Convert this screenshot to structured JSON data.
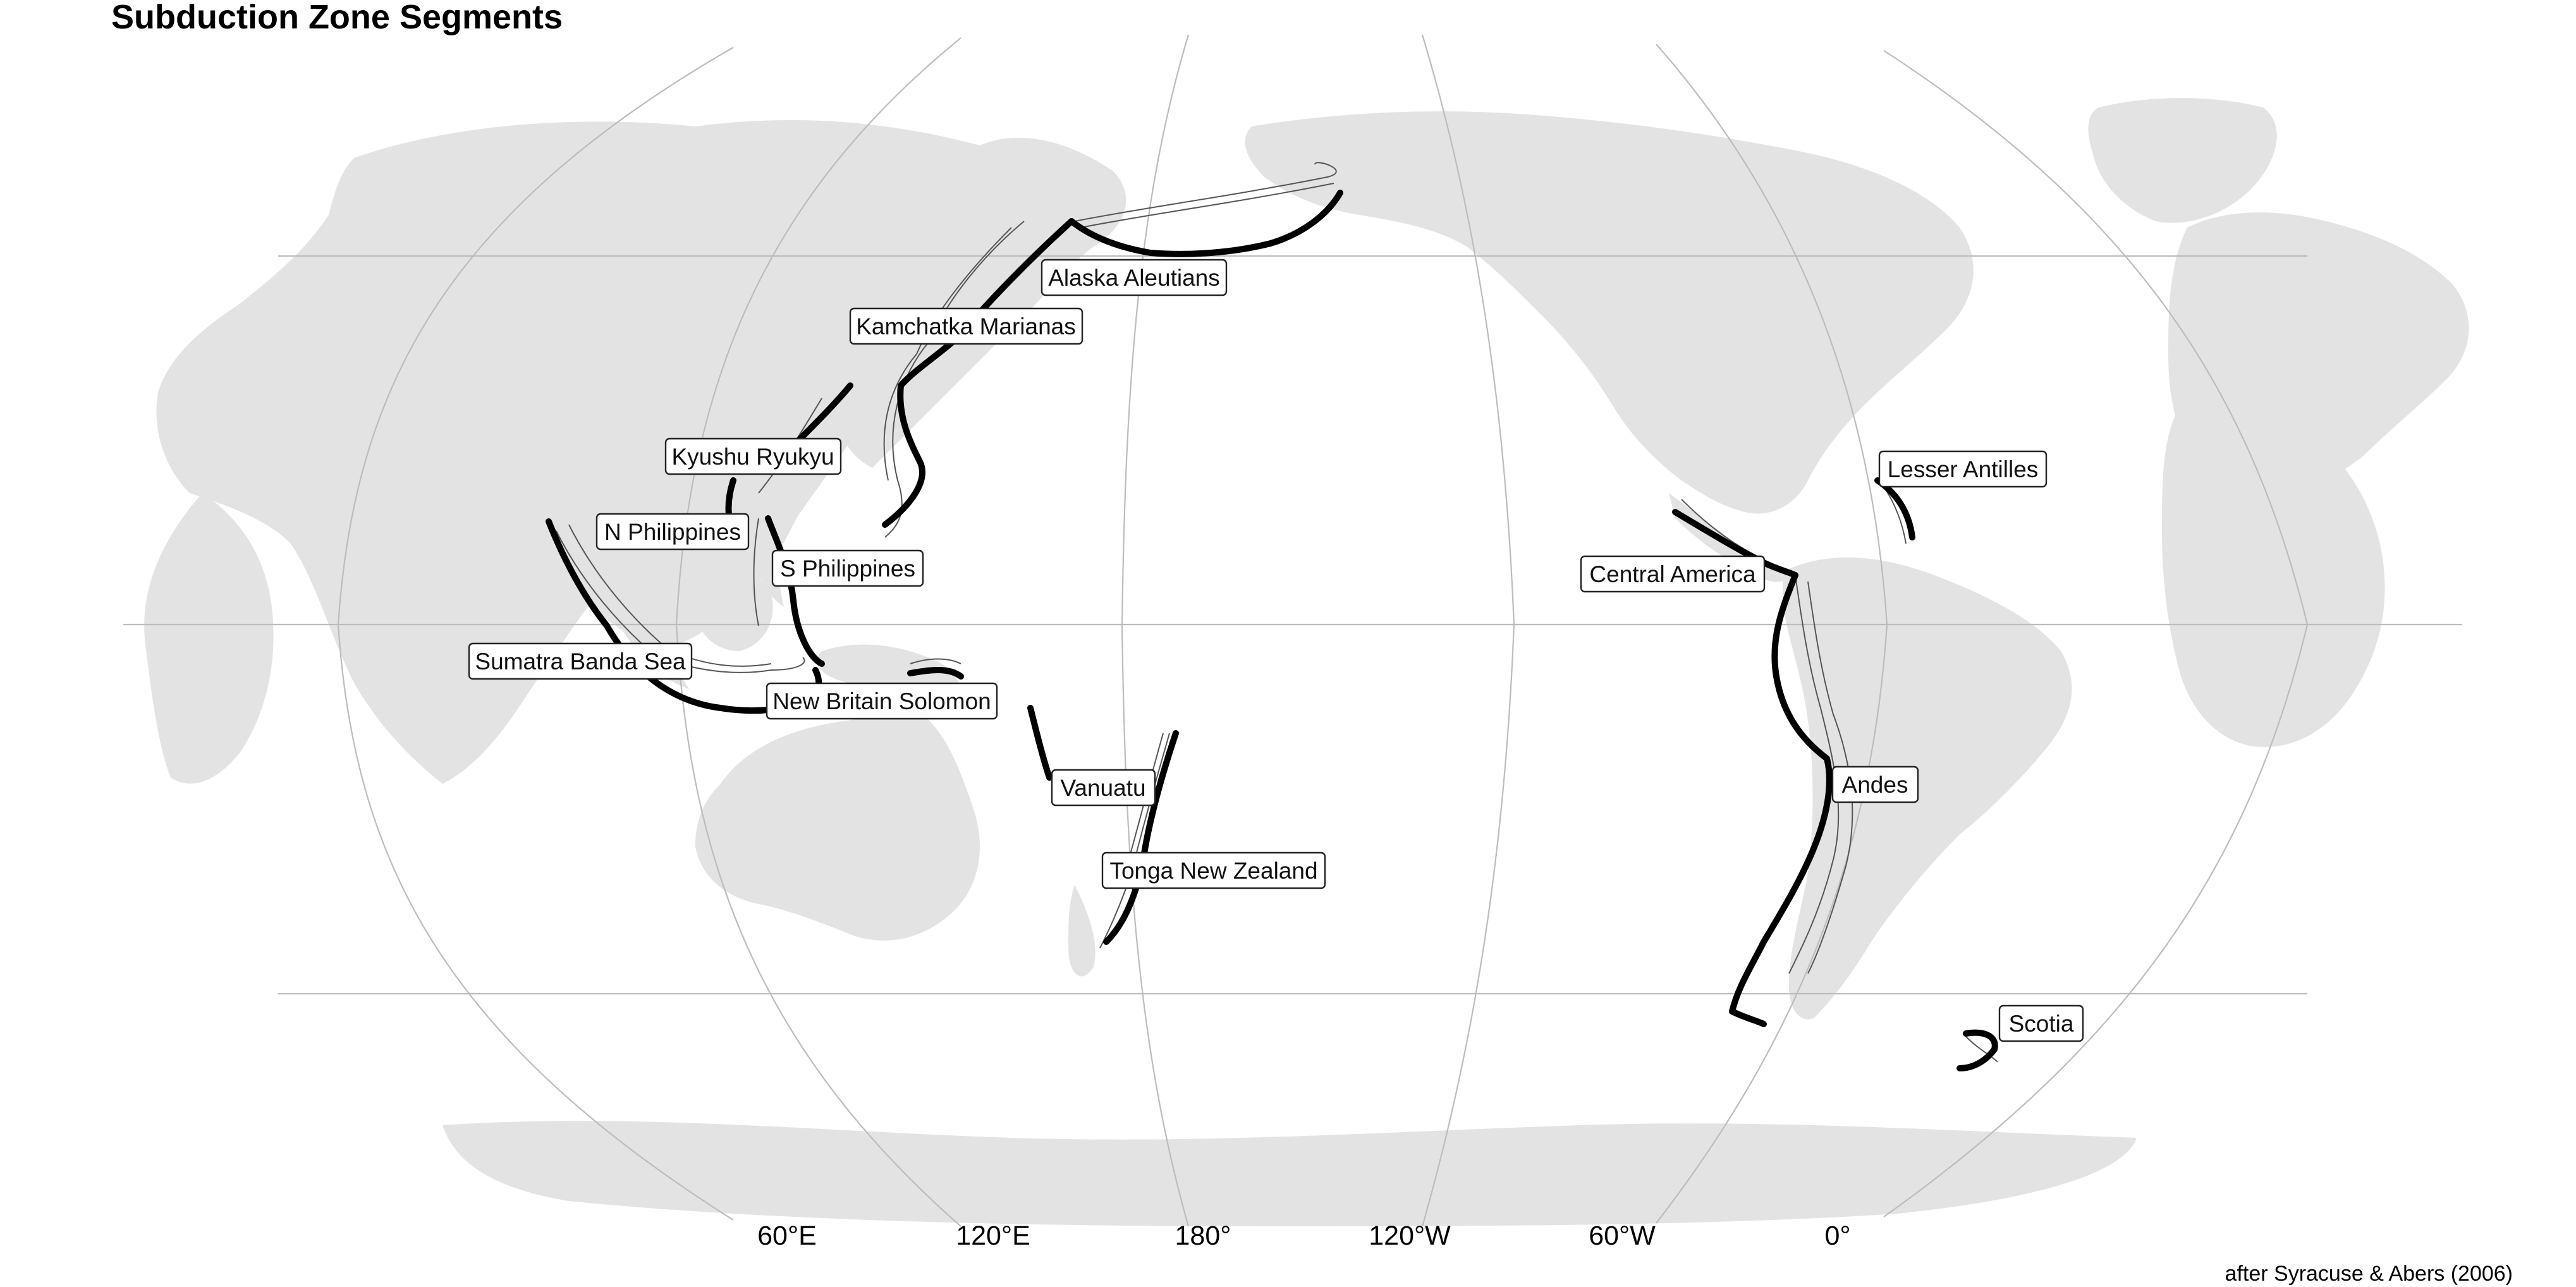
{
  "title": "Subduction Zone Segments",
  "credit": "after Syracuse & Abers (2006)",
  "colors": {
    "land": "#e3e3e3",
    "trench": "#000000",
    "graticule": "#bcbcbc",
    "contour": "#555555"
  },
  "longitude_ticks": [
    "60°E",
    "120°E",
    "180°",
    "120°W",
    "60°W",
    "0°"
  ],
  "segments": [
    "Alaska Aleutians",
    "Kamchatka Marianas",
    "Kyushu Ryukyu",
    "N Philippines",
    "S Philippines",
    "Sumatra Banda Sea",
    "New Britain Solomon",
    "Vanuatu",
    "Tonga New Zealand",
    "Lesser Antilles",
    "Central America",
    "Andes",
    "Scotia"
  ]
}
